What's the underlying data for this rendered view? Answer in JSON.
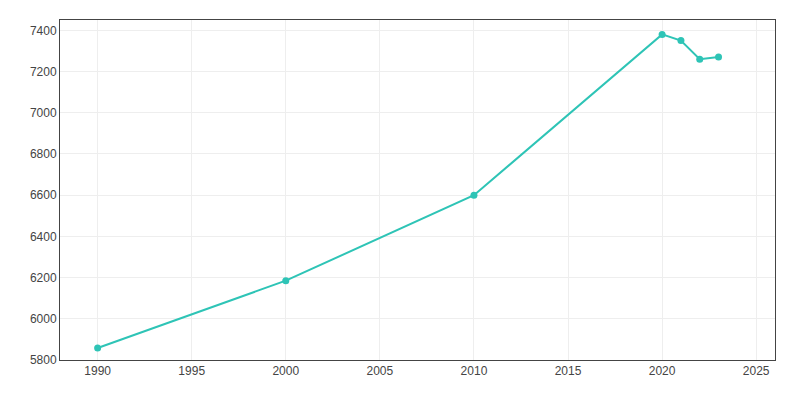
{
  "chart_data": {
    "type": "line",
    "x": [
      1990,
      2000,
      2010,
      2020,
      2021,
      2022,
      2023
    ],
    "values": [
      5858,
      6185,
      6600,
      7380,
      7350,
      7260,
      7270
    ],
    "color": "#2ec4b6",
    "marker": "circle",
    "xlim": [
      1988,
      2026
    ],
    "ylim": [
      5800,
      7450
    ],
    "xticks": [
      1990,
      1995,
      2000,
      2005,
      2010,
      2015,
      2020,
      2025
    ],
    "yticks": [
      5800,
      6000,
      6200,
      6400,
      6600,
      6800,
      7000,
      7200,
      7400
    ],
    "grid": true
  }
}
